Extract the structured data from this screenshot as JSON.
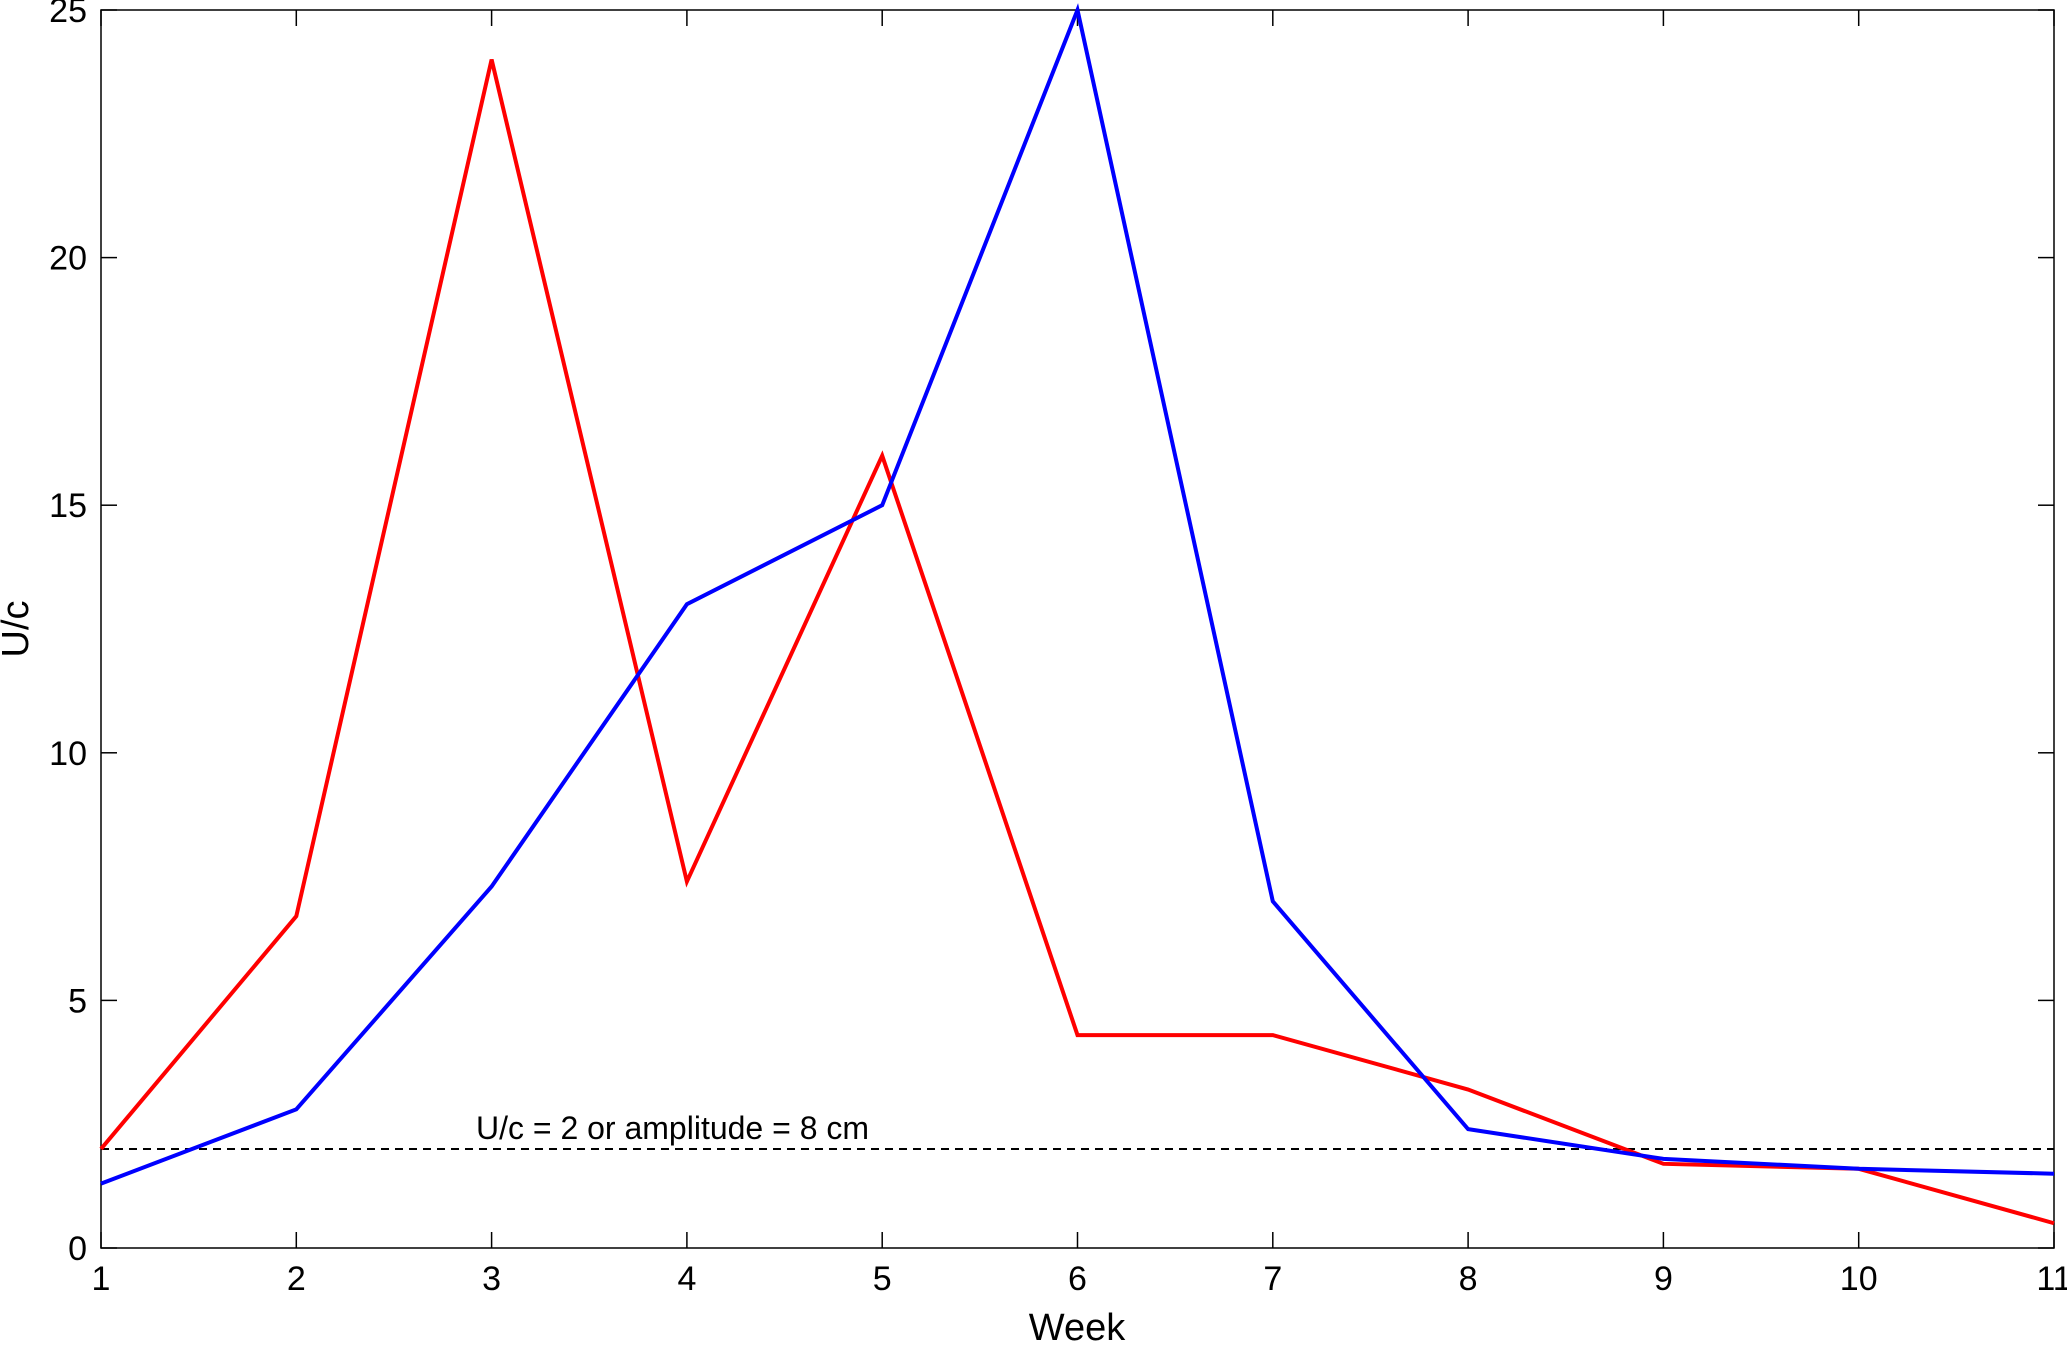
{
  "chart_data": {
    "type": "line",
    "xlabel": "Week",
    "ylabel": "U/c",
    "xlim": [
      1,
      11
    ],
    "ylim": [
      0,
      25
    ],
    "xticks": [
      1,
      2,
      3,
      4,
      5,
      6,
      7,
      8,
      9,
      10,
      11
    ],
    "yticks": [
      0,
      5,
      10,
      15,
      20,
      25
    ],
    "grid": false,
    "x": [
      1,
      2,
      3,
      4,
      5,
      6,
      7,
      8,
      9,
      10,
      11
    ],
    "series": [
      {
        "color": "#ff0000",
        "values": [
          2.0,
          6.7,
          24.0,
          7.4,
          16.0,
          4.3,
          4.3,
          3.2,
          1.7,
          1.6,
          0.5
        ]
      },
      {
        "color": "#0000ff",
        "values": [
          1.3,
          2.8,
          7.3,
          13.0,
          15.0,
          25.0,
          7.0,
          2.4,
          1.8,
          1.6,
          1.5
        ]
      }
    ],
    "reference_line": {
      "y": 2,
      "style": "dashed",
      "color": "#000000",
      "label": "U/c = 2 or amplitude = 8 cm"
    }
  }
}
